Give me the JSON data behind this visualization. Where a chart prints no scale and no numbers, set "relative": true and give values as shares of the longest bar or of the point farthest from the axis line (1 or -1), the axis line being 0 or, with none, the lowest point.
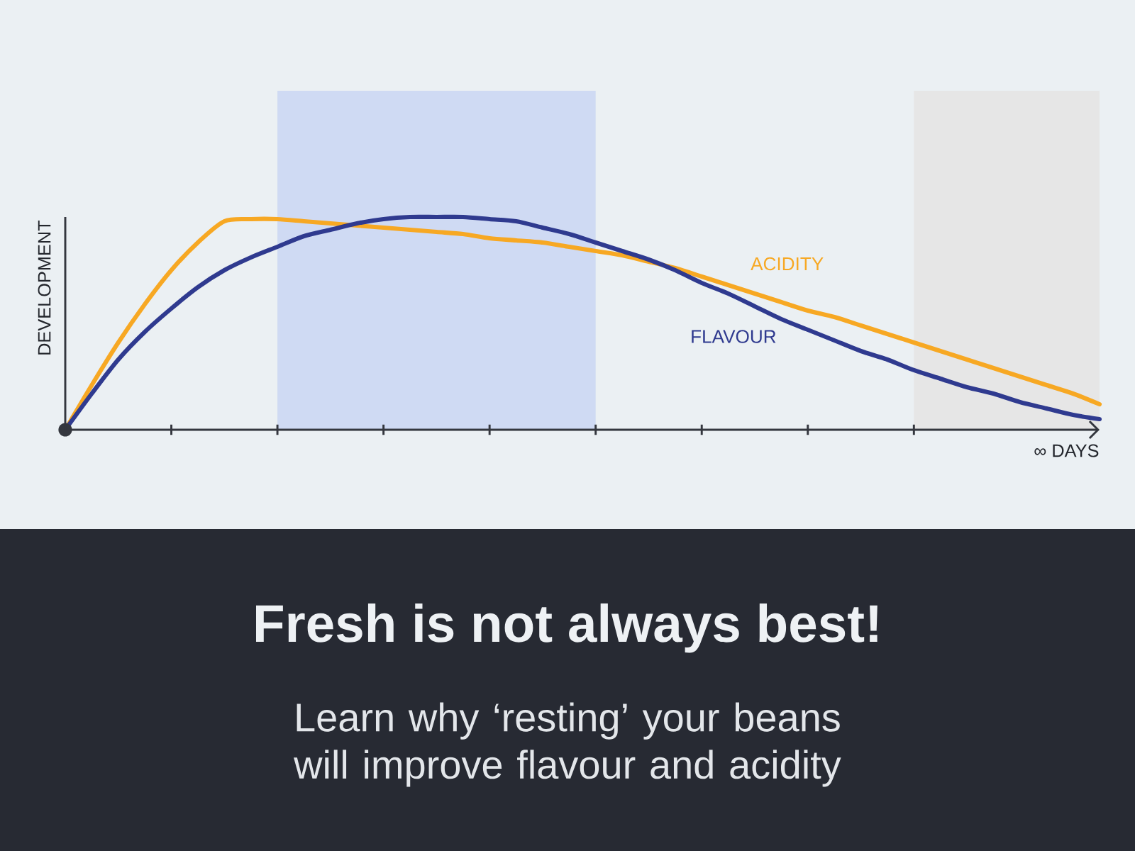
{
  "chart_data": {
    "type": "line",
    "title": "Fresh is not always best!",
    "subtitle": "Learn why ‘resting’ your beans will improve flavour and acidity",
    "xlabel": "∞ DAYS",
    "ylabel": "DEVELOPMENT",
    "relative": true,
    "categories": [
      null,
      null,
      null,
      null,
      null,
      null,
      null,
      null,
      null,
      null,
      null,
      null,
      null,
      null,
      null,
      null,
      null,
      null,
      null,
      null,
      null,
      null,
      null,
      null,
      null,
      null,
      null,
      null,
      null,
      null,
      null,
      null,
      null,
      null,
      null,
      null,
      null,
      null,
      null,
      null
    ],
    "series": [
      {
        "name": "ACIDITY",
        "color": "#f7a823",
        "values": [
          0,
          0.21,
          0.41,
          0.59,
          0.75,
          0.88,
          0.98,
          0.99,
          0.99,
          0.98,
          0.97,
          0.96,
          0.95,
          0.94,
          0.93,
          0.92,
          0.9,
          0.89,
          0.88,
          0.86,
          0.84,
          0.82,
          0.79,
          0.76,
          0.72,
          0.68,
          0.64,
          0.6,
          0.56,
          0.53,
          0.49,
          0.45,
          0.41,
          0.37,
          0.33,
          0.29,
          0.25,
          0.21,
          0.17,
          0.12
        ]
      },
      {
        "name": "FLAVOUR",
        "color": "#2f3a8f",
        "values": [
          0,
          0.17,
          0.33,
          0.46,
          0.57,
          0.67,
          0.75,
          0.81,
          0.86,
          0.91,
          0.94,
          0.97,
          0.99,
          1.0,
          1.0,
          1.0,
          0.99,
          0.98,
          0.95,
          0.92,
          0.88,
          0.84,
          0.8,
          0.75,
          0.69,
          0.64,
          0.58,
          0.52,
          0.47,
          0.42,
          0.37,
          0.33,
          0.28,
          0.24,
          0.2,
          0.17,
          0.13,
          0.1,
          0.07,
          0.05
        ]
      }
    ]
  }
}
